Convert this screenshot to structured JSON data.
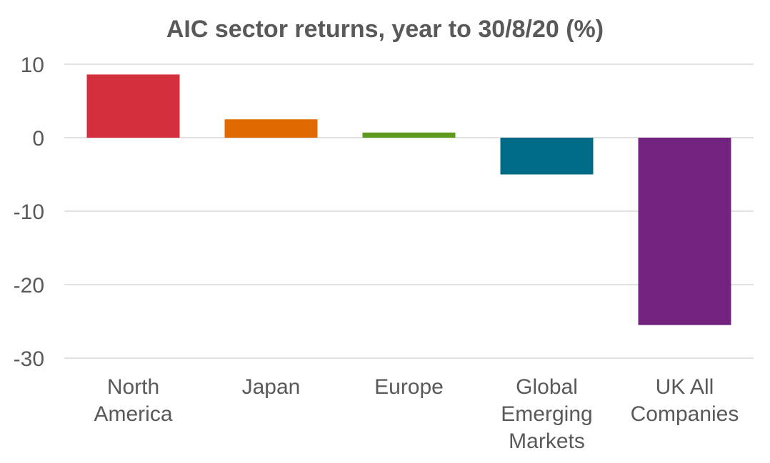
{
  "chart_data": {
    "type": "bar",
    "title": "AIC sector returns, year to 30/8/20 (%)",
    "xlabel": "",
    "ylabel": "",
    "categories": [
      [
        "North",
        "America"
      ],
      [
        "Japan"
      ],
      [
        "Europe"
      ],
      [
        "Global",
        "Emerging",
        "Markets"
      ],
      [
        "UK All",
        "Companies"
      ]
    ],
    "values": [
      8.6,
      2.5,
      0.7,
      -5.0,
      -25.5
    ],
    "colors": [
      "#d32f3c",
      "#e06a00",
      "#5e9a1e",
      "#006b87",
      "#72237f"
    ],
    "ylim": [
      -30,
      10
    ],
    "yticks": [
      10,
      0,
      -10,
      -20,
      -30
    ],
    "grid": true,
    "legend": "none"
  }
}
